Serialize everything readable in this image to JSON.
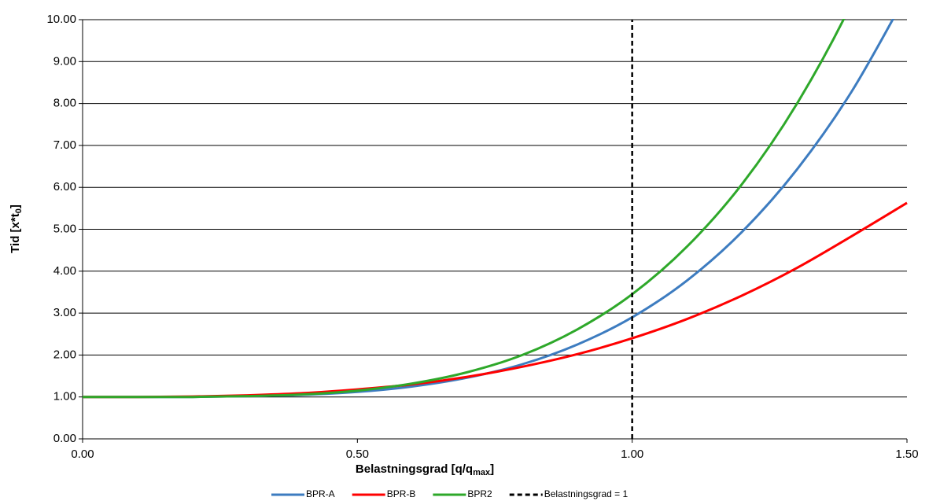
{
  "chart_data": {
    "type": "line",
    "y_label": {
      "text": "Tid [x*t",
      "sub": "0",
      "end": "]"
    },
    "x_label": {
      "text": "Belastningsgrad [q/q",
      "sub": "max",
      "end": "]"
    },
    "x": [
      0,
      0.1,
      0.2,
      0.3,
      0.4,
      0.5,
      0.6,
      0.7,
      0.8,
      0.9,
      1.0,
      1.1,
      1.2,
      1.3,
      1.4,
      1.5
    ],
    "series": [
      {
        "name": "BPR-A",
        "color": "#3d7cc0",
        "values": [
          1.0,
          1.0,
          1.0,
          1.02,
          1.05,
          1.12,
          1.25,
          1.46,
          1.78,
          2.25,
          2.9,
          3.78,
          4.94,
          6.43,
          8.3,
          10.62
        ]
      },
      {
        "name": "BPR-B",
        "color": "#ff0000",
        "values": [
          1.0,
          1.0,
          1.01,
          1.04,
          1.09,
          1.18,
          1.3,
          1.48,
          1.72,
          2.02,
          2.4,
          2.86,
          3.42,
          4.08,
          4.84,
          5.63
        ]
      },
      {
        "name": "BPR2",
        "color": "#2ea82a",
        "values": [
          1.0,
          1.0,
          1.0,
          1.02,
          1.06,
          1.15,
          1.32,
          1.59,
          2.0,
          2.61,
          3.45,
          4.59,
          6.08,
          8.0,
          10.41,
          13.4
        ]
      },
      {
        "name": "Belastningsgrad = 1",
        "color": "#000000",
        "dash": true,
        "x": [
          1,
          1
        ],
        "values": [
          0,
          10
        ]
      }
    ],
    "xlim": [
      0,
      1.5
    ],
    "xticks": [
      {
        "value": 0,
        "label": "0.00"
      },
      {
        "value": 0.5,
        "label": "0.50"
      },
      {
        "value": 1,
        "label": "1.00"
      },
      {
        "value": 1.5,
        "label": "1.50"
      }
    ],
    "ylim": [
      0,
      10
    ],
    "yticks": [
      {
        "value": 0,
        "label": "0.00"
      },
      {
        "value": 1,
        "label": "1.00"
      },
      {
        "value": 2,
        "label": "2.00"
      },
      {
        "value": 3,
        "label": "3.00"
      },
      {
        "value": 4,
        "label": "4.00"
      },
      {
        "value": 5,
        "label": "5.00"
      },
      {
        "value": 6,
        "label": "6.00"
      },
      {
        "value": 7,
        "label": "7.00"
      },
      {
        "value": 8,
        "label": "8.00"
      },
      {
        "value": 9,
        "label": "9.00"
      },
      {
        "value": 10,
        "label": "10.00"
      }
    ],
    "grid": true,
    "legend": "bottom"
  }
}
